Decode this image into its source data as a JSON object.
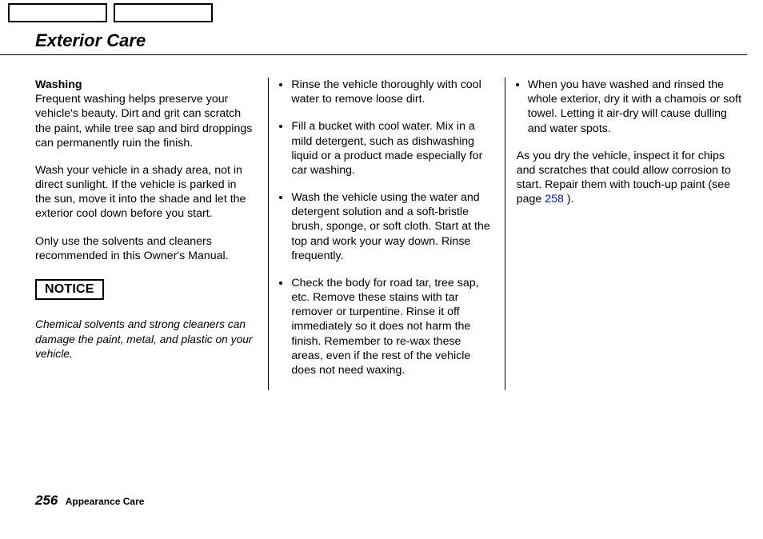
{
  "page": {
    "title": "Exterior Care",
    "page_number": "256",
    "section_name": "Appearance Care",
    "link_color": "#0018c8"
  },
  "col1": {
    "subheading": "Washing",
    "p1": "Frequent washing helps preserve your vehicle's beauty. Dirt and grit can scratch the paint, while tree sap and bird droppings can permanently ruin the finish.",
    "p2": "Wash your vehicle in a shady area, not in direct sunlight. If the vehicle is parked in the sun, move it into the shade and let the exterior cool down before you start.",
    "p3": "Only use the solvents and cleaners recommended in this Owner's Manual.",
    "notice_label": "NOTICE",
    "notice_text": "Chemical solvents and strong cleaners can damage the paint, metal, and plastic on your vehicle."
  },
  "col2": {
    "items": [
      "Rinse the vehicle thoroughly with cool water to remove loose dirt.",
      "Fill a bucket with cool water. Mix in a mild detergent, such as dishwashing liquid or a product made especially for car washing.",
      "Wash the vehicle using the water and detergent solution and a soft-bristle brush, sponge, or soft cloth. Start at the top and work your way down. Rinse frequently.",
      "Check the body for road tar, tree sap, etc. Remove these stains with tar remover or turpentine. Rinse it off immediately so it does not harm the finish. Remember to re-wax these areas, even if the rest of the vehicle does not need waxing."
    ]
  },
  "col3": {
    "items": [
      "When you have washed and rinsed the whole exterior, dry it with a chamois or soft towel. Letting it air-dry will cause dulling and water spots."
    ],
    "closing_before": "As you dry the vehicle, inspect it for chips and scratches that could allow corrosion to start. Repair them with touch-up paint (see page ",
    "closing_link": "258",
    "closing_after": " )."
  }
}
